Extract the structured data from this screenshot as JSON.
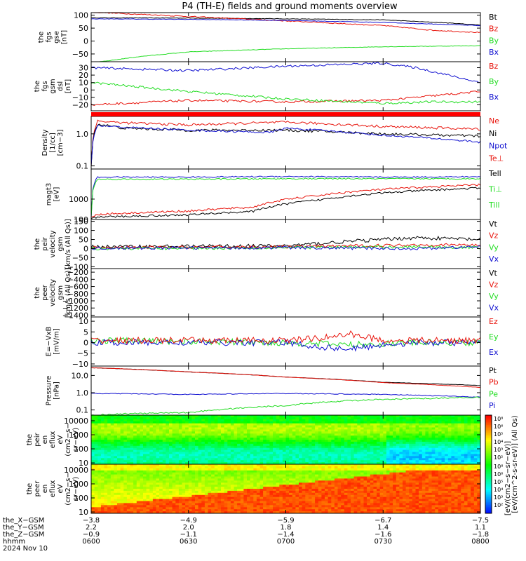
{
  "title": "P4 (TH-E) fields and ground moments overview",
  "colors": {
    "black": "#000000",
    "red": "#e8140c",
    "green": "#22dd22",
    "blue": "#1010d0",
    "bar": "#ff0000"
  },
  "chart_data": [
    {
      "id": "p1",
      "type": "line",
      "ylabel": [
        "the",
        "fgs",
        "gse",
        "[nT]"
      ],
      "ylim": [
        -80,
        110
      ],
      "yticks": [
        {
          "v": 100,
          "t": "100"
        },
        {
          "v": 50,
          "t": "50"
        },
        {
          "v": 0,
          "t": "0"
        },
        {
          "v": -50,
          "t": "−50"
        }
      ],
      "legend": [
        {
          "text": "Bt",
          "color": "black"
        },
        {
          "text": "Bz",
          "color": "red"
        },
        {
          "text": "By",
          "color": "green"
        },
        {
          "text": "Bx",
          "color": "blue"
        }
      ],
      "series": [
        {
          "name": "Bt",
          "color": "black",
          "x": [
            0,
            30,
            60,
            90,
            110,
            120
          ],
          "y": [
            90,
            89,
            86,
            82,
            70,
            62
          ],
          "noise": 1
        },
        {
          "name": "Bz",
          "color": "red",
          "x": [
            0,
            30,
            60,
            90,
            105,
            120
          ],
          "y": [
            112,
            95,
            78,
            60,
            42,
            33
          ],
          "noise": 2
        },
        {
          "name": "By",
          "color": "green",
          "x": [
            0,
            15,
            30,
            60,
            90,
            120
          ],
          "y": [
            -85,
            -60,
            -42,
            -30,
            -22,
            -18
          ],
          "noise": 1
        },
        {
          "name": "Bx",
          "color": "blue",
          "x": [
            0,
            30,
            60,
            90,
            120
          ],
          "y": [
            86,
            84,
            80,
            72,
            60
          ],
          "noise": 1
        }
      ]
    },
    {
      "id": "p2",
      "type": "line",
      "ylabel": [
        "the",
        "fgs",
        "gsm",
        "dsl",
        "[nT]"
      ],
      "ylim": [
        -28,
        38
      ],
      "yticks": [
        {
          "v": 30,
          "t": "30"
        },
        {
          "v": 20,
          "t": "20"
        },
        {
          "v": 10,
          "t": "10"
        },
        {
          "v": 0,
          "t": "0"
        },
        {
          "v": -10,
          "t": "−10"
        },
        {
          "v": -20,
          "t": "−20"
        }
      ],
      "legend": [
        {
          "text": "Bz",
          "color": "red"
        },
        {
          "text": "By",
          "color": "green"
        },
        {
          "text": "Bx",
          "color": "blue"
        }
      ],
      "series": [
        {
          "name": "Bz",
          "color": "red",
          "x": [
            0,
            30,
            60,
            90,
            105,
            120
          ],
          "y": [
            -20,
            -14,
            -16,
            -14,
            -8,
            -2
          ],
          "noise": 1.5
        },
        {
          "name": "By",
          "color": "green",
          "x": [
            0,
            30,
            60,
            90,
            105,
            120
          ],
          "y": [
            10,
            -2,
            -12,
            -18,
            -16,
            -16
          ],
          "noise": 1.5
        },
        {
          "name": "Bx",
          "color": "blue",
          "x": [
            0,
            30,
            60,
            90,
            100,
            110,
            120
          ],
          "y": [
            30,
            26,
            32,
            36,
            30,
            20,
            10
          ],
          "noise": 1.5
        }
      ]
    },
    {
      "id": "p3",
      "type": "line",
      "ylabel": [
        "Density",
        "[1/cc]",
        "[cm−3]"
      ],
      "log": true,
      "ylim": [
        0.08,
        3.5
      ],
      "yticks": [
        {
          "v": 1,
          "t": "1.0"
        },
        {
          "v": 0.1,
          "t": "0.1"
        }
      ],
      "legend": [
        {
          "text": "Ne",
          "color": "red"
        },
        {
          "text": "Ni",
          "color": "black"
        },
        {
          "text": "Npot",
          "color": "blue"
        },
        {
          "text": "Te⊥",
          "color": "red"
        }
      ],
      "series": [
        {
          "name": "Ne",
          "color": "red",
          "x": [
            0,
            2,
            10,
            30,
            60,
            90,
            120
          ],
          "y": [
            0.1,
            2.5,
            2.2,
            1.9,
            2.3,
            1.7,
            1.4
          ],
          "noise": 0.04
        },
        {
          "name": "Ni",
          "color": "black",
          "x": [
            0,
            2,
            10,
            30,
            60,
            90,
            120
          ],
          "y": [
            0.1,
            2.0,
            1.5,
            1.3,
            1.3,
            1.0,
            0.85
          ],
          "noise": 0.04
        },
        {
          "name": "Npot",
          "color": "blue",
          "x": [
            0,
            2,
            10,
            30,
            55,
            60,
            90,
            120
          ],
          "y": [
            0.1,
            1.8,
            1.6,
            1.3,
            1.1,
            1.5,
            0.9,
            0.55
          ],
          "noise": 0.03
        }
      ]
    },
    {
      "id": "p4",
      "type": "line",
      "ylabel": [
        "magt3",
        "[eV]"
      ],
      "log": true,
      "ylim": [
        100,
        30000
      ],
      "yticks": [
        {
          "v": 1000,
          "t": "1000"
        },
        {
          "v": 100,
          "t": "100"
        }
      ],
      "legend": [
        {
          "text": "Tell",
          "color": "black"
        },
        {
          "text": "Ti⊥",
          "color": "green"
        },
        {
          "text": "Till",
          "color": "green"
        }
      ],
      "series": [
        {
          "name": "Te⊥",
          "color": "blue",
          "x": [
            0,
            2,
            30,
            60,
            90,
            120
          ],
          "y": [
            120,
            12000,
            12000,
            13000,
            12000,
            12500
          ],
          "noise": 0.03
        },
        {
          "name": "Ti⊥",
          "color": "green",
          "x": [
            0,
            2,
            30,
            60,
            90,
            120
          ],
          "y": [
            120,
            9500,
            9500,
            10000,
            10000,
            10000
          ],
          "noise": 0.03
        },
        {
          "name": "Te",
          "color": "red",
          "x": [
            0,
            2,
            30,
            50,
            70,
            90,
            120
          ],
          "y": [
            120,
            180,
            260,
            400,
            1500,
            3000,
            5000
          ],
          "noise": 0.05
        },
        {
          "name": "Tell",
          "color": "black",
          "x": [
            0,
            2,
            30,
            50,
            70,
            90,
            120
          ],
          "y": [
            120,
            130,
            170,
            250,
            900,
            2000,
            3500
          ],
          "noise": 0.05
        }
      ]
    },
    {
      "id": "p5",
      "type": "line",
      "ylabel": [
        "the",
        "peir",
        "velocity",
        "gsm",
        "[km/s (All Qs)]"
      ],
      "ylim": [
        -110,
        160
      ],
      "yticks": [
        {
          "v": 150,
          "t": "150"
        },
        {
          "v": 100,
          "t": "100"
        },
        {
          "v": 50,
          "t": "50"
        },
        {
          "v": 0,
          "t": "0"
        },
        {
          "v": -50,
          "t": "−50"
        },
        {
          "v": -100,
          "t": "−100"
        }
      ],
      "legend": [
        {
          "text": "Vt",
          "color": "black"
        },
        {
          "text": "Vz",
          "color": "red"
        },
        {
          "text": "Vy",
          "color": "green"
        },
        {
          "text": "Vx",
          "color": "blue"
        }
      ],
      "series": [
        {
          "name": "Vt",
          "color": "black",
          "x": [
            0,
            60,
            80,
            100,
            120
          ],
          "y": [
            10,
            15,
            40,
            60,
            50
          ],
          "noise": 10
        },
        {
          "name": "Vz",
          "color": "red",
          "x": [
            0,
            60,
            100,
            120
          ],
          "y": [
            5,
            10,
            20,
            20
          ],
          "noise": 8
        },
        {
          "name": "Vy",
          "color": "green",
          "x": [
            0,
            60,
            100,
            120
          ],
          "y": [
            0,
            5,
            10,
            5
          ],
          "noise": 8
        },
        {
          "name": "Vx",
          "color": "blue",
          "x": [
            0,
            60,
            100,
            120
          ],
          "y": [
            2,
            5,
            0,
            10
          ],
          "noise": 8
        }
      ]
    },
    {
      "id": "p6",
      "type": "line",
      "ylabel": [
        "the",
        "peer",
        "velocity",
        "gsm",
        "[km/s (All Qs)]"
      ],
      "ylim": [
        -1450,
        -100
      ],
      "yticks": [
        {
          "v": -200,
          "t": "−200"
        },
        {
          "v": -400,
          "t": "−400"
        },
        {
          "v": -600,
          "t": "−600"
        },
        {
          "v": -800,
          "t": "−800"
        },
        {
          "v": -1000,
          "t": "−1000"
        },
        {
          "v": -1200,
          "t": "−1200"
        },
        {
          "v": -1400,
          "t": "−1400"
        }
      ],
      "legend": [
        {
          "text": "Vt",
          "color": "black"
        },
        {
          "text": "Vz",
          "color": "red"
        },
        {
          "text": "Vy",
          "color": "green"
        },
        {
          "text": "Vx",
          "color": "blue"
        }
      ],
      "series": []
    },
    {
      "id": "p7",
      "type": "line",
      "ylabel": [
        "E=−VxB",
        "[mV/m]"
      ],
      "ylim": [
        -11,
        12
      ],
      "yticks": [
        {
          "v": 10,
          "t": "10"
        },
        {
          "v": 5,
          "t": "5"
        },
        {
          "v": 0,
          "t": "0"
        },
        {
          "v": -5,
          "t": "−5"
        },
        {
          "v": -10,
          "t": "−10"
        }
      ],
      "legend": [
        {
          "text": "Ez",
          "color": "red"
        },
        {
          "text": "Ey",
          "color": "green"
        },
        {
          "text": "Ex",
          "color": "blue"
        }
      ],
      "series": [
        {
          "name": "Ey",
          "color": "green",
          "x": [
            0,
            60,
            80,
            100,
            120
          ],
          "y": [
            1,
            0,
            -1,
            0,
            0
          ],
          "noise": 1.5
        },
        {
          "name": "Ex",
          "color": "blue",
          "x": [
            0,
            30,
            60,
            70,
            80,
            90,
            100,
            120
          ],
          "y": [
            0,
            0,
            0,
            -2,
            -3,
            -1,
            0,
            0
          ],
          "noise": 1.5
        },
        {
          "name": "Ez",
          "color": "red",
          "x": [
            0,
            30,
            60,
            70,
            80,
            90,
            100,
            120
          ],
          "y": [
            1,
            1,
            1,
            2,
            4,
            1,
            1,
            1
          ],
          "noise": 1.5
        }
      ]
    },
    {
      "id": "p8",
      "type": "line",
      "ylabel": [
        "Pressure",
        "[nPa]"
      ],
      "log": true,
      "ylim": [
        0.05,
        35
      ],
      "yticks": [
        {
          "v": 10,
          "t": "10.0"
        },
        {
          "v": 1,
          "t": "1.0"
        },
        {
          "v": 0.1,
          "t": "0.1"
        }
      ],
      "legend": [
        {
          "text": "Pt",
          "color": "black"
        },
        {
          "text": "Pb",
          "color": "red"
        },
        {
          "text": "Pe",
          "color": "green"
        },
        {
          "text": "Pi",
          "color": "blue"
        }
      ],
      "series": [
        {
          "name": "Pt",
          "color": "black",
          "x": [
            0,
            30,
            60,
            90,
            120
          ],
          "y": [
            28,
            16,
            8,
            4,
            2.6
          ],
          "noise": 0.01
        },
        {
          "name": "Pb",
          "color": "red",
          "x": [
            0,
            30,
            60,
            90,
            120
          ],
          "y": [
            28,
            16,
            8,
            3.8,
            2.0
          ],
          "noise": 0.01
        },
        {
          "name": "Pi",
          "color": "blue",
          "x": [
            0,
            30,
            60,
            90,
            120
          ],
          "y": [
            0.9,
            0.8,
            0.9,
            0.8,
            0.55
          ],
          "noise": 0.02
        },
        {
          "name": "Pe",
          "color": "green",
          "x": [
            0,
            10,
            30,
            60,
            80,
            100,
            120
          ],
          "y": [
            0.05,
            0.06,
            0.07,
            0.18,
            0.35,
            0.45,
            0.55
          ],
          "noise": 0.04
        }
      ]
    },
    {
      "id": "p9",
      "type": "heatmap",
      "ylabel": [
        "the",
        "peir",
        "en",
        "eflux",
        "eV",
        "(cm2−s−",
        "sr−eV)"
      ],
      "log": true,
      "ylim": [
        8,
        25000
      ],
      "yticks": [
        {
          "v": 10000,
          "t": "10000"
        },
        {
          "v": 1000,
          "t": "1000"
        },
        {
          "v": 100,
          "t": "100"
        },
        {
          "v": 10,
          "t": "10"
        }
      ]
    },
    {
      "id": "p10",
      "type": "heatmap",
      "ylabel": [
        "the",
        "peer",
        "en",
        "eflux",
        "eV",
        "(cm2−s−",
        "sr−eV)"
      ],
      "log": true,
      "ylim": [
        8,
        25000
      ],
      "yticks": [
        {
          "v": 10000,
          "t": "10000"
        },
        {
          "v": 1000,
          "t": "1000"
        },
        {
          "v": 100,
          "t": "100"
        },
        {
          "v": 10,
          "t": "10"
        }
      ]
    }
  ],
  "colorbar": {
    "label": "[eV/(cm^2-s-sr-eV)] (All Qs)",
    "overlap_text": "[eV/(cm2−s−sr−eV)]",
    "ticks_top": [
      "10⁸",
      "10⁶",
      "10⁵",
      "10⁴",
      "10³",
      "10²"
    ],
    "ticks_bottom": [
      "10⁸",
      "10⁶",
      "10⁵",
      "10⁴",
      "10³",
      "10²"
    ]
  },
  "xaxis": {
    "minutes": [
      0,
      30,
      60,
      90,
      120
    ],
    "rows": [
      {
        "label": "the_X−GSM",
        "values": [
          "−3.8",
          "−4.9",
          "−5.9",
          "−6.7",
          "−7.5"
        ]
      },
      {
        "label": "the_Y−GSM",
        "values": [
          "2.2",
          "2.0",
          "1.8",
          "1.4",
          "1.1"
        ]
      },
      {
        "label": "the_Z−GSM",
        "values": [
          "−0.9",
          "−1.1",
          "−1.4",
          "−1.6",
          "−1.8"
        ]
      },
      {
        "label": "hhmm",
        "values": [
          "0600",
          "0630",
          "0700",
          "0730",
          "0800"
        ]
      }
    ],
    "date": "2024 Nov 10"
  }
}
